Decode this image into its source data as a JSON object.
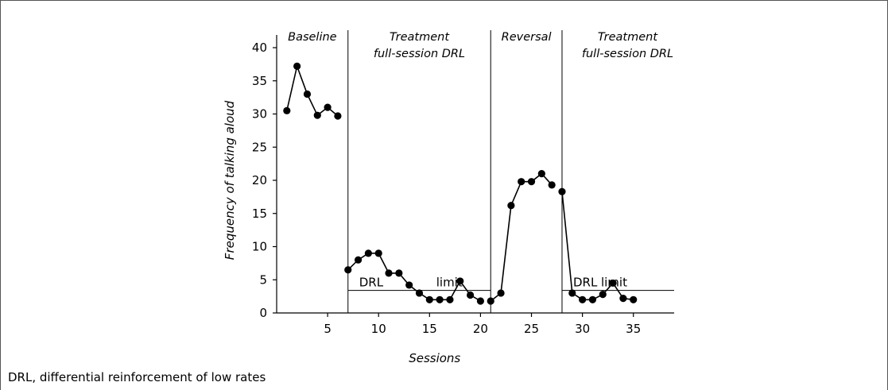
{
  "chart_data": {
    "type": "line",
    "xlabel": "Sessions",
    "ylabel": "Frequency of talking aloud",
    "xlim": [
      0,
      39
    ],
    "ylim": [
      0,
      40
    ],
    "x_ticks": [
      5,
      10,
      15,
      20,
      25,
      30,
      35
    ],
    "y_ticks": [
      0,
      5,
      10,
      15,
      20,
      25,
      30,
      35,
      40
    ],
    "phase_changes": [
      7,
      21,
      28
    ],
    "phases": [
      {
        "lines": [
          "Baseline"
        ],
        "from": 0,
        "to": 7
      },
      {
        "lines": [
          "Treatment",
          "full-session DRL"
        ],
        "from": 7,
        "to": 21
      },
      {
        "lines": [
          "Reversal"
        ],
        "from": 21,
        "to": 28
      },
      {
        "lines": [
          "Treatment",
          "full-session DRL"
        ],
        "from": 28,
        "to": 39
      }
    ],
    "drl_limits": [
      {
        "y": 3.4,
        "from": 7,
        "to": 21,
        "label_left": "DRL",
        "label_right": "limit"
      },
      {
        "y": 3.4,
        "from": 28,
        "to": 39,
        "label_left": "DRL",
        "label_right": "limit"
      }
    ],
    "segments": [
      [
        [
          1,
          30.5
        ],
        [
          2,
          37.2
        ],
        [
          3,
          33
        ],
        [
          4,
          29.8
        ],
        [
          5,
          31
        ],
        [
          6,
          29.7
        ]
      ],
      [
        [
          7,
          6.5
        ],
        [
          8,
          8
        ],
        [
          9,
          9
        ],
        [
          10,
          9
        ],
        [
          11,
          6
        ],
        [
          12,
          6
        ],
        [
          13,
          4.2
        ],
        [
          14,
          3
        ],
        [
          15,
          2
        ],
        [
          16,
          2
        ],
        [
          17,
          2
        ],
        [
          18,
          4.8
        ],
        [
          19,
          2.7
        ],
        [
          20,
          1.8
        ]
      ],
      [
        [
          21,
          1.8
        ],
        [
          22,
          3
        ],
        [
          23,
          16.2
        ],
        [
          24,
          19.8
        ],
        [
          25,
          19.8
        ],
        [
          26,
          21
        ],
        [
          27,
          19.3
        ]
      ],
      [
        [
          28,
          18.3
        ],
        [
          29,
          3
        ],
        [
          30,
          2
        ],
        [
          31,
          2
        ],
        [
          32,
          2.8
        ],
        [
          33,
          4.5
        ],
        [
          34,
          2.2
        ],
        [
          35,
          2
        ]
      ]
    ]
  },
  "footnote": "DRL, differential reinforcement of low rates"
}
